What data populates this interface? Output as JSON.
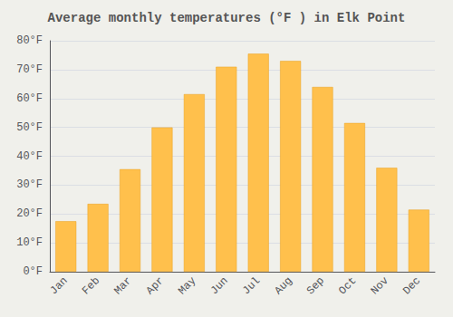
{
  "chart_data": {
    "type": "bar",
    "title": "Average monthly temperatures (°F ) in Elk Point",
    "categories": [
      "Jan",
      "Feb",
      "Mar",
      "Apr",
      "May",
      "Jun",
      "Jul",
      "Aug",
      "Sep",
      "Oct",
      "Nov",
      "Dec"
    ],
    "values": [
      17.5,
      23.5,
      35.5,
      50.0,
      61.5,
      71.0,
      75.5,
      73.0,
      64.0,
      51.5,
      36.0,
      21.5
    ],
    "color": "#FFC04C",
    "ylim": [
      0,
      80
    ],
    "yticks": [
      {
        "value": 0,
        "label": "0°F"
      },
      {
        "value": 10,
        "label": "10°F"
      },
      {
        "value": 20,
        "label": "20°F"
      },
      {
        "value": 30,
        "label": "30°F"
      },
      {
        "value": 40,
        "label": "40°F"
      },
      {
        "value": 50,
        "label": "50°F"
      },
      {
        "value": 60,
        "label": "60°F"
      },
      {
        "value": 70,
        "label": "70°F"
      },
      {
        "value": 80,
        "label": "80°F"
      }
    ],
    "grid": true
  }
}
